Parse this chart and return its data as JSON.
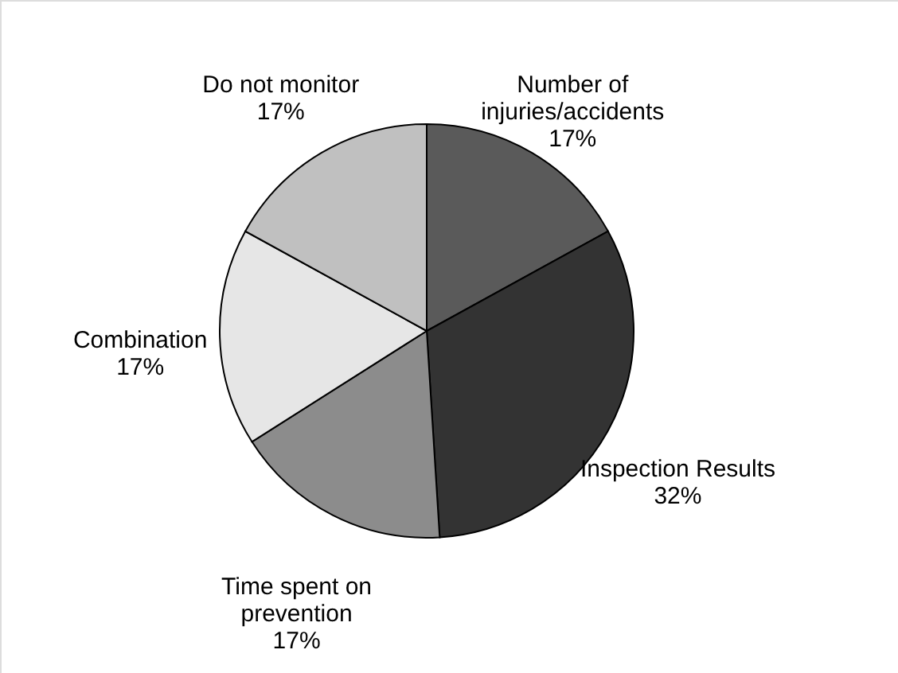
{
  "chart_data": {
    "type": "pie",
    "categories": [
      "Number of\ninjuries/accidents",
      "Inspection Results",
      "Time spent on\nprevention",
      "Combination",
      "Do not monitor"
    ],
    "values": [
      17,
      32,
      17,
      17,
      17
    ],
    "value_labels": [
      "17%",
      "32%",
      "17%",
      "17%",
      "17%"
    ],
    "colors": [
      "#5a5a5a",
      "#333333",
      "#8c8c8c",
      "#e6e6e6",
      "#c0c0c0"
    ]
  }
}
